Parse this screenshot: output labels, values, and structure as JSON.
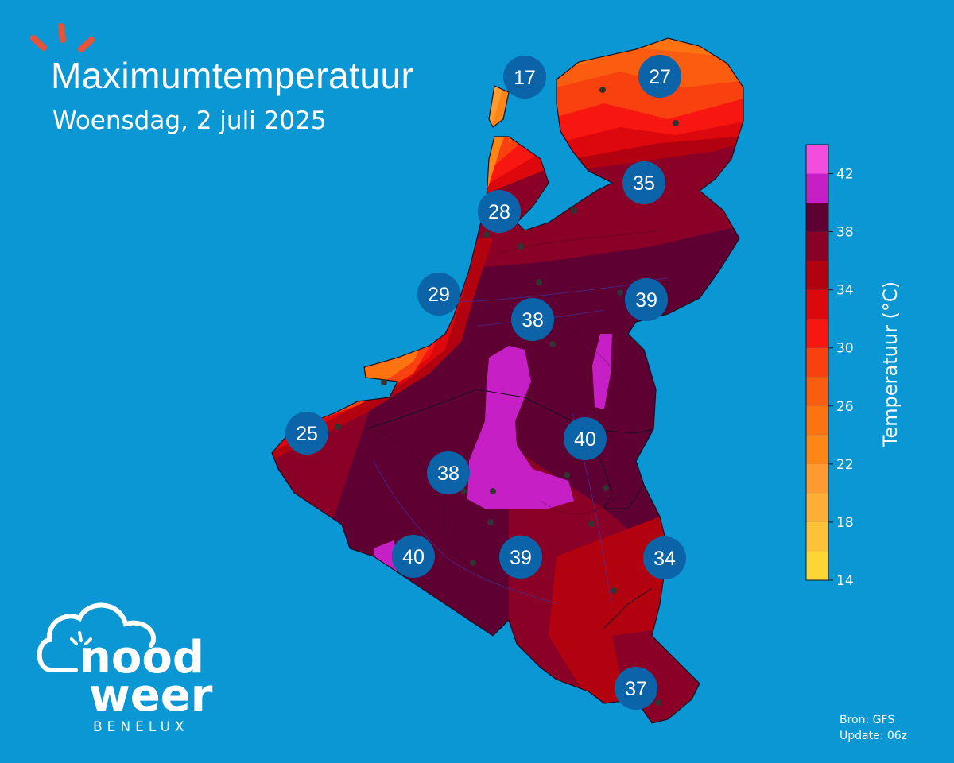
{
  "header": {
    "title": "Maximumtemperatuur",
    "subtitle": "Woensdag, 2 juli 2025"
  },
  "colorbar": {
    "label": "Temperatuur (°C)",
    "range": [
      14,
      44
    ],
    "ticks": [
      "14",
      "18",
      "22",
      "26",
      "30",
      "34",
      "38",
      "42"
    ],
    "bands": [
      {
        "from": 14,
        "to": 16,
        "color": "#fdd636"
      },
      {
        "from": 16,
        "to": 18,
        "color": "#fec23a"
      },
      {
        "from": 18,
        "to": 20,
        "color": "#fdae37"
      },
      {
        "from": 20,
        "to": 22,
        "color": "#fd9a32"
      },
      {
        "from": 22,
        "to": 24,
        "color": "#fd8617"
      },
      {
        "from": 24,
        "to": 26,
        "color": "#fd7311"
      },
      {
        "from": 26,
        "to": 28,
        "color": "#fa5d10"
      },
      {
        "from": 28,
        "to": 30,
        "color": "#f8410f"
      },
      {
        "from": 30,
        "to": 32,
        "color": "#f81610"
      },
      {
        "from": 32,
        "to": 34,
        "color": "#dd070e"
      },
      {
        "from": 34,
        "to": 36,
        "color": "#b3020f"
      },
      {
        "from": 36,
        "to": 38,
        "color": "#8a0026"
      },
      {
        "from": 38,
        "to": 40,
        "color": "#5f0033"
      },
      {
        "from": 40,
        "to": 42,
        "color": "#c61fc5"
      },
      {
        "from": 42,
        "to": 44,
        "color": "#f34de0"
      }
    ]
  },
  "map_labels": [
    {
      "value": "17"
    },
    {
      "value": "27"
    },
    {
      "value": "35"
    },
    {
      "value": "28"
    },
    {
      "value": "29"
    },
    {
      "value": "38"
    },
    {
      "value": "39"
    },
    {
      "value": "40"
    },
    {
      "value": "25"
    },
    {
      "value": "38"
    },
    {
      "value": "40"
    },
    {
      "value": "39"
    },
    {
      "value": "34"
    },
    {
      "value": "37"
    }
  ],
  "colors": {
    "background": "#0a97d4",
    "label_circle": "#0b63a8",
    "label_text": "#ffffff",
    "sun_rays": "#e5533a"
  },
  "footer": {
    "source": "Bron: GFS",
    "update": "Update: 06z"
  },
  "logo": {
    "word1": "nood",
    "word2": "weer",
    "sub": "BENELUX"
  }
}
